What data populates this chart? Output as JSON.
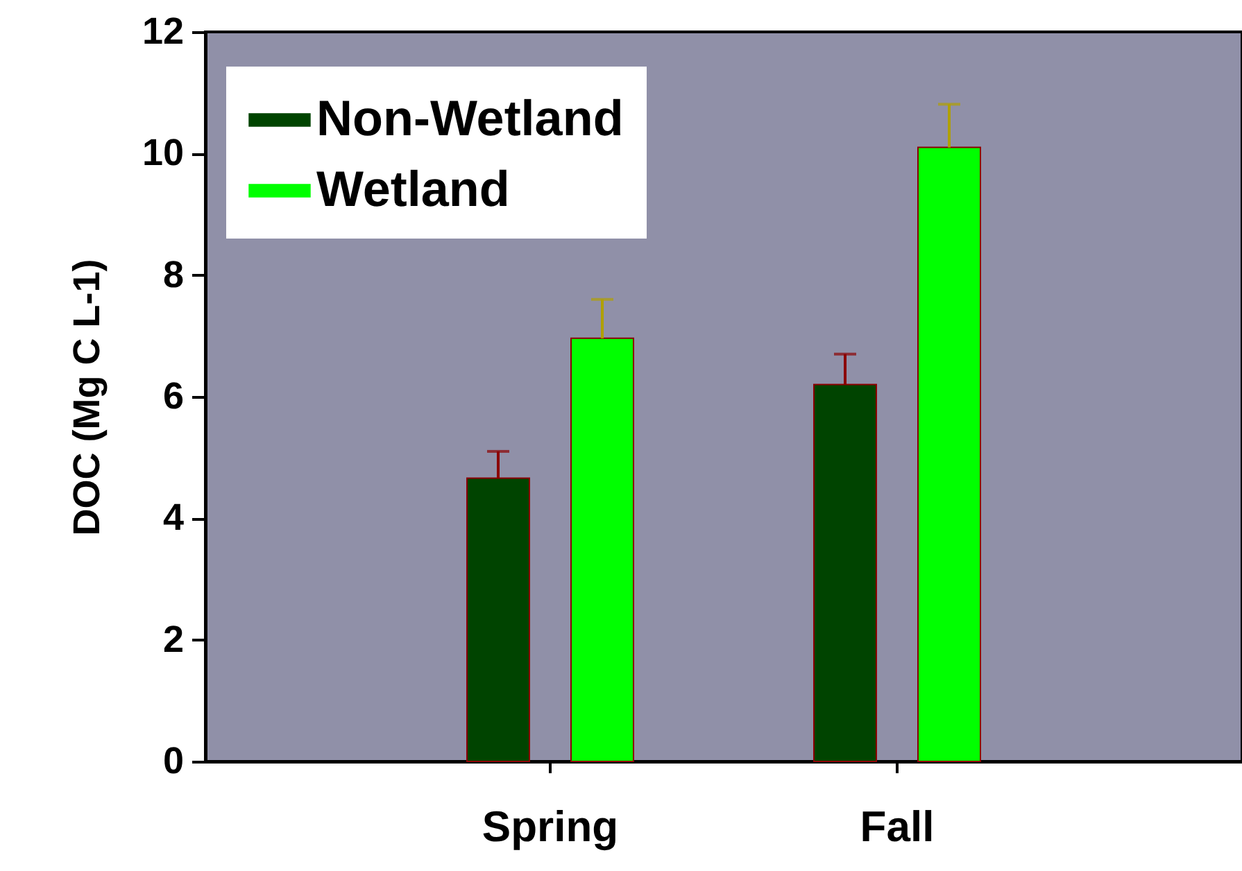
{
  "chart_data": {
    "type": "bar",
    "ylabel": "DOC (Mg C L-1)",
    "categories": [
      "Spring",
      "Fall"
    ],
    "ylim": [
      0,
      12
    ],
    "yticks": [
      0,
      2,
      4,
      6,
      8,
      10,
      12
    ],
    "legend": "top left",
    "grid": false,
    "series": [
      {
        "name": "Non-Wetland",
        "color": "#004400",
        "values": [
          4.66,
          6.2
        ],
        "errors": [
          [
            4.66,
            5.1
          ],
          [
            6.2,
            6.7
          ]
        ]
      },
      {
        "name": "Wetland",
        "color": "#00ff00",
        "values": [
          6.96,
          10.1
        ],
        "errors": [
          [
            6.96,
            7.6
          ],
          [
            10.1,
            10.81
          ]
        ]
      }
    ]
  }
}
